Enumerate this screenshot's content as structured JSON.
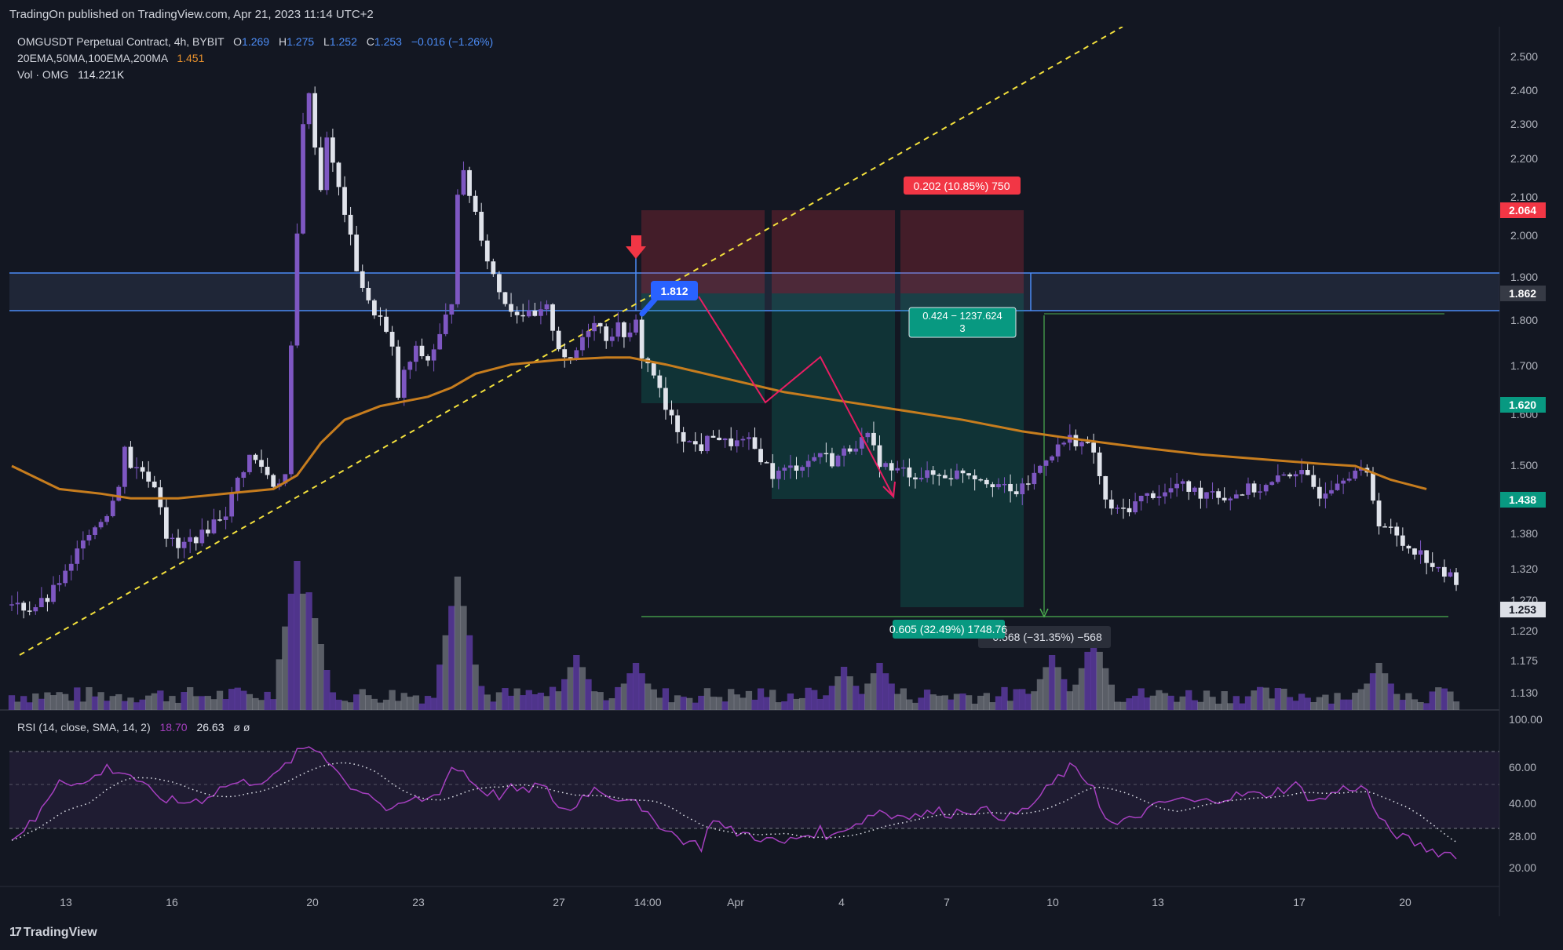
{
  "header": {
    "published": "TradingOn published on TradingView.com, Apr 21, 2023 11:14 UTC+2"
  },
  "legend": {
    "symbol": "OMGUSDT Perpetual Contract, 4h, BYBIT",
    "open_label": "O",
    "open": "1.269",
    "high_label": "H",
    "high": "1.275",
    "low_label": "L",
    "low": "1.252",
    "close_label": "C",
    "close": "1.253",
    "change": "−0.016 (−1.26%)",
    "ma_label": "20EMA,50MA,100EMA,200MA",
    "ma_value": "1.451",
    "vol_label": "Vol · OMG",
    "vol_value": "114.221K",
    "rsi_label": "RSI (14, close, SMA, 14, 2)",
    "rsi_value": "18.70",
    "rsi_ma_value": "26.63",
    "rsi_extra": "ø ø"
  },
  "annotations": {
    "stop_box": "0.202 (10.85%) 750",
    "entry_badge": "1.812",
    "mid_box_line1": "0.424 − 1237.624",
    "mid_box_line2": "3",
    "target_box": "0.605 (32.49%) 1748.76",
    "measure_box": "−0.568 (−31.35%) −568"
  },
  "price_axis": {
    "ticks": [
      "2.500",
      "2.400",
      "2.300",
      "2.200",
      "2.100",
      "2.000",
      "1.900",
      "1.800",
      "1.700",
      "1.600",
      "1.500",
      "1.380",
      "1.320",
      "1.270",
      "1.220",
      "1.175",
      "1.130"
    ],
    "badges": [
      {
        "label": "2.064",
        "price": 2.064,
        "color": "#f23645"
      },
      {
        "label": "1.862",
        "price": 1.862,
        "color": "#363a45"
      },
      {
        "label": "1.620",
        "price": 1.62,
        "color": "#089981"
      },
      {
        "label": "1.438",
        "price": 1.438,
        "color": "#089981"
      },
      {
        "label": "1.253",
        "price": 1.253,
        "color": "#dcdfe6"
      }
    ]
  },
  "rsi_axis": {
    "ticks": [
      "100.00",
      "60.00",
      "40.00",
      "28.00",
      "20.00"
    ]
  },
  "time_axis": {
    "ticks": [
      "13",
      "16",
      "20",
      "23",
      "27",
      "14:00",
      "Apr",
      "4",
      "7",
      "10",
      "13",
      "17",
      "20"
    ]
  },
  "footer": {
    "brand": "TradingView",
    "logo_icon": "tv-logo-icon"
  },
  "colors": {
    "bg": "#131722",
    "up": "#7e57c2",
    "down": "#e0e3eb",
    "ma": "#c77d1e",
    "rsi": "#a53fbf",
    "zone": "#4c8cf5",
    "target": "#089981",
    "stop": "#f23645",
    "trend": "#f3e03c",
    "path": "#e91e63"
  },
  "chart_data": {
    "type": "candlestick",
    "ylim": [
      1.1,
      2.55
    ],
    "rsi_ylim": [
      10,
      100
    ],
    "candle_count": 244,
    "price_path": [
      [
        0,
        1.2
      ],
      [
        3,
        1.19
      ],
      [
        6,
        1.21
      ],
      [
        8,
        1.25
      ],
      [
        10,
        1.28
      ],
      [
        12,
        1.35
      ],
      [
        14,
        1.37
      ],
      [
        16,
        1.4
      ],
      [
        18,
        1.45
      ],
      [
        19,
        1.55
      ],
      [
        20,
        1.5
      ],
      [
        22,
        1.49
      ],
      [
        24,
        1.46
      ],
      [
        25,
        1.42
      ],
      [
        26,
        1.35
      ],
      [
        28,
        1.32
      ],
      [
        30,
        1.34
      ],
      [
        32,
        1.35
      ],
      [
        34,
        1.38
      ],
      [
        36,
        1.4
      ],
      [
        38,
        1.47
      ],
      [
        40,
        1.52
      ],
      [
        42,
        1.5
      ],
      [
        44,
        1.46
      ],
      [
        46,
        1.48
      ],
      [
        47,
        1.75
      ],
      [
        48,
        2.0
      ],
      [
        49,
        2.25
      ],
      [
        50,
        2.3
      ],
      [
        51,
        2.2
      ],
      [
        52,
        2.1
      ],
      [
        53,
        2.22
      ],
      [
        54,
        2.15
      ],
      [
        56,
        2.05
      ],
      [
        58,
        1.93
      ],
      [
        60,
        1.85
      ],
      [
        62,
        1.82
      ],
      [
        64,
        1.75
      ],
      [
        65,
        1.65
      ],
      [
        66,
        1.7
      ],
      [
        68,
        1.75
      ],
      [
        70,
        1.73
      ],
      [
        72,
        1.78
      ],
      [
        74,
        1.86
      ],
      [
        75,
        2.1
      ],
      [
        76,
        2.13
      ],
      [
        78,
        2.05
      ],
      [
        80,
        1.95
      ],
      [
        82,
        1.88
      ],
      [
        84,
        1.84
      ],
      [
        86,
        1.83
      ],
      [
        88,
        1.82
      ],
      [
        90,
        1.84
      ],
      [
        92,
        1.76
      ],
      [
        94,
        1.72
      ],
      [
        96,
        1.78
      ],
      [
        98,
        1.82
      ],
      [
        100,
        1.78
      ],
      [
        102,
        1.8
      ],
      [
        104,
        1.78
      ],
      [
        105,
        1.81
      ],
      [
        106,
        1.74
      ],
      [
        108,
        1.7
      ],
      [
        110,
        1.62
      ],
      [
        112,
        1.58
      ],
      [
        114,
        1.55
      ],
      [
        116,
        1.54
      ],
      [
        118,
        1.57
      ],
      [
        120,
        1.55
      ],
      [
        122,
        1.55
      ],
      [
        124,
        1.55
      ],
      [
        126,
        1.52
      ],
      [
        128,
        1.48
      ],
      [
        130,
        1.49
      ],
      [
        132,
        1.5
      ],
      [
        134,
        1.51
      ],
      [
        136,
        1.53
      ],
      [
        138,
        1.51
      ],
      [
        140,
        1.53
      ],
      [
        142,
        1.55
      ],
      [
        144,
        1.56
      ],
      [
        146,
        1.51
      ],
      [
        148,
        1.49
      ],
      [
        150,
        1.49
      ],
      [
        152,
        1.48
      ],
      [
        154,
        1.48
      ],
      [
        156,
        1.48
      ],
      [
        158,
        1.48
      ],
      [
        160,
        1.49
      ],
      [
        162,
        1.48
      ],
      [
        164,
        1.47
      ],
      [
        166,
        1.46
      ],
      [
        168,
        1.44
      ],
      [
        170,
        1.45
      ],
      [
        172,
        1.48
      ],
      [
        174,
        1.52
      ],
      [
        176,
        1.54
      ],
      [
        178,
        1.56
      ],
      [
        180,
        1.55
      ],
      [
        182,
        1.53
      ],
      [
        184,
        1.42
      ],
      [
        186,
        1.4
      ],
      [
        188,
        1.41
      ],
      [
        190,
        1.43
      ],
      [
        192,
        1.44
      ],
      [
        194,
        1.44
      ],
      [
        196,
        1.46
      ],
      [
        198,
        1.45
      ],
      [
        200,
        1.44
      ],
      [
        202,
        1.45
      ],
      [
        204,
        1.43
      ],
      [
        206,
        1.44
      ],
      [
        208,
        1.45
      ],
      [
        210,
        1.45
      ],
      [
        212,
        1.46
      ],
      [
        214,
        1.48
      ],
      [
        216,
        1.49
      ],
      [
        218,
        1.47
      ],
      [
        220,
        1.44
      ],
      [
        222,
        1.46
      ],
      [
        224,
        1.48
      ],
      [
        226,
        1.49
      ],
      [
        228,
        1.48
      ],
      [
        230,
        1.38
      ],
      [
        232,
        1.36
      ],
      [
        234,
        1.33
      ],
      [
        236,
        1.32
      ],
      [
        238,
        1.3
      ],
      [
        240,
        1.27
      ],
      [
        242,
        1.26
      ],
      [
        243,
        1.253
      ]
    ],
    "ma_path": [
      [
        0,
        1.5
      ],
      [
        8,
        1.45
      ],
      [
        15,
        1.44
      ],
      [
        20,
        1.43
      ],
      [
        28,
        1.43
      ],
      [
        36,
        1.44
      ],
      [
        44,
        1.45
      ],
      [
        48,
        1.48
      ],
      [
        52,
        1.55
      ],
      [
        56,
        1.6
      ],
      [
        62,
        1.63
      ],
      [
        70,
        1.65
      ],
      [
        74,
        1.67
      ],
      [
        78,
        1.7
      ],
      [
        84,
        1.72
      ],
      [
        92,
        1.73
      ],
      [
        100,
        1.735
      ],
      [
        104,
        1.735
      ],
      [
        110,
        1.72
      ],
      [
        120,
        1.69
      ],
      [
        130,
        1.66
      ],
      [
        140,
        1.64
      ],
      [
        150,
        1.62
      ],
      [
        160,
        1.6
      ],
      [
        170,
        1.575
      ],
      [
        178,
        1.56
      ],
      [
        184,
        1.55
      ],
      [
        190,
        1.54
      ],
      [
        200,
        1.525
      ],
      [
        210,
        1.515
      ],
      [
        220,
        1.505
      ],
      [
        226,
        1.5
      ],
      [
        232,
        1.47
      ],
      [
        238,
        1.45
      ]
    ],
    "rsi_path": [
      [
        0,
        28
      ],
      [
        4,
        38
      ],
      [
        8,
        62
      ],
      [
        12,
        58
      ],
      [
        16,
        68
      ],
      [
        20,
        64
      ],
      [
        24,
        52
      ],
      [
        28,
        48
      ],
      [
        32,
        50
      ],
      [
        36,
        58
      ],
      [
        40,
        60
      ],
      [
        44,
        62
      ],
      [
        48,
        76
      ],
      [
        50,
        80
      ],
      [
        52,
        77
      ],
      [
        54,
        70
      ],
      [
        56,
        60
      ],
      [
        58,
        56
      ],
      [
        60,
        54
      ],
      [
        62,
        47
      ],
      [
        64,
        42
      ],
      [
        66,
        48
      ],
      [
        68,
        50
      ],
      [
        70,
        50
      ],
      [
        72,
        55
      ],
      [
        74,
        68
      ],
      [
        76,
        66
      ],
      [
        78,
        58
      ],
      [
        80,
        54
      ],
      [
        82,
        52
      ],
      [
        84,
        56
      ],
      [
        86,
        54
      ],
      [
        88,
        58
      ],
      [
        90,
        55
      ],
      [
        92,
        46
      ],
      [
        94,
        43
      ],
      [
        96,
        52
      ],
      [
        98,
        56
      ],
      [
        100,
        54
      ],
      [
        102,
        50
      ],
      [
        104,
        52
      ],
      [
        106,
        42
      ],
      [
        108,
        38
      ],
      [
        110,
        34
      ],
      [
        112,
        28
      ],
      [
        114,
        26
      ],
      [
        116,
        23
      ],
      [
        118,
        40
      ],
      [
        120,
        33
      ],
      [
        122,
        31
      ],
      [
        124,
        30
      ],
      [
        126,
        28
      ],
      [
        128,
        26
      ],
      [
        130,
        25
      ],
      [
        132,
        28
      ],
      [
        134,
        30
      ],
      [
        136,
        32
      ],
      [
        138,
        28
      ],
      [
        140,
        34
      ],
      [
        142,
        36
      ],
      [
        144,
        40
      ],
      [
        146,
        44
      ],
      [
        148,
        40
      ],
      [
        150,
        42
      ],
      [
        152,
        41
      ],
      [
        154,
        42
      ],
      [
        156,
        43
      ],
      [
        158,
        42
      ],
      [
        160,
        44
      ],
      [
        162,
        44
      ],
      [
        164,
        43
      ],
      [
        166,
        41
      ],
      [
        168,
        40
      ],
      [
        170,
        43
      ],
      [
        172,
        48
      ],
      [
        174,
        55
      ],
      [
        176,
        62
      ],
      [
        178,
        68
      ],
      [
        180,
        63
      ],
      [
        182,
        58
      ],
      [
        184,
        38
      ],
      [
        186,
        35
      ],
      [
        188,
        38
      ],
      [
        190,
        42
      ],
      [
        192,
        45
      ],
      [
        194,
        48
      ],
      [
        196,
        50
      ],
      [
        198,
        49
      ],
      [
        200,
        48
      ],
      [
        202,
        50
      ],
      [
        204,
        51
      ],
      [
        206,
        52
      ],
      [
        208,
        53
      ],
      [
        210,
        52
      ],
      [
        212,
        54
      ],
      [
        214,
        56
      ],
      [
        216,
        58
      ],
      [
        218,
        52
      ],
      [
        220,
        49
      ],
      [
        222,
        53
      ],
      [
        224,
        56
      ],
      [
        226,
        57
      ],
      [
        228,
        55
      ],
      [
        230,
        38
      ],
      [
        232,
        32
      ],
      [
        234,
        28
      ],
      [
        236,
        25
      ],
      [
        238,
        22
      ],
      [
        240,
        20
      ],
      [
        242,
        19
      ],
      [
        243,
        18.7
      ]
    ],
    "volume_spikes": [
      [
        48,
        190
      ],
      [
        50,
        150
      ],
      [
        75,
        170
      ],
      [
        76,
        90
      ],
      [
        95,
        70
      ],
      [
        105,
        60
      ],
      [
        140,
        55
      ],
      [
        146,
        60
      ],
      [
        175,
        70
      ],
      [
        182,
        95
      ],
      [
        230,
        60
      ]
    ]
  }
}
